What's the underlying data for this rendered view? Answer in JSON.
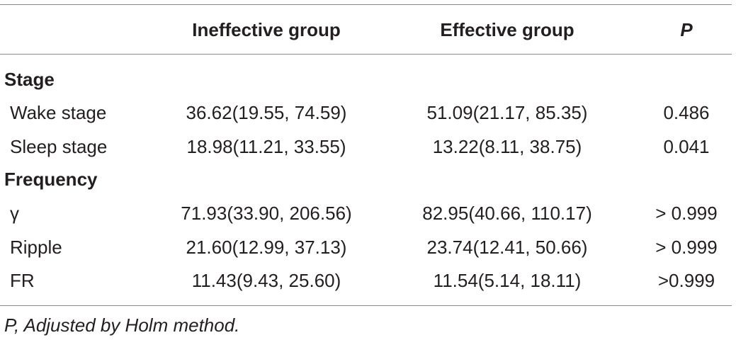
{
  "table": {
    "headers": {
      "ineffective": "Ineffective group",
      "effective": "Effective group",
      "p": "P"
    },
    "sections": [
      {
        "title": "Stage",
        "rows": [
          {
            "label": "Wake stage",
            "ineffective": "36.62(19.55, 74.59)",
            "effective": "51.09(21.17, 85.35)",
            "p": "0.486"
          },
          {
            "label": "Sleep stage",
            "ineffective": "18.98(11.21, 33.55)",
            "effective": "13.22(8.11, 38.75)",
            "p": "0.041"
          }
        ]
      },
      {
        "title": "Frequency",
        "rows": [
          {
            "label": "γ",
            "ineffective": "71.93(33.90, 206.56)",
            "effective": "82.95(40.66, 110.17)",
            "p": "> 0.999"
          },
          {
            "label": "Ripple",
            "ineffective": "21.60(12.99, 37.13)",
            "effective": "23.74(12.41, 50.66)",
            "p": "> 0.999"
          },
          {
            "label": "FR",
            "ineffective": "11.43(9.43, 25.60)",
            "effective": "11.54(5.14, 18.11)",
            "p": ">0.999"
          }
        ]
      }
    ],
    "footnote": "P, Adjusted by Holm method."
  }
}
